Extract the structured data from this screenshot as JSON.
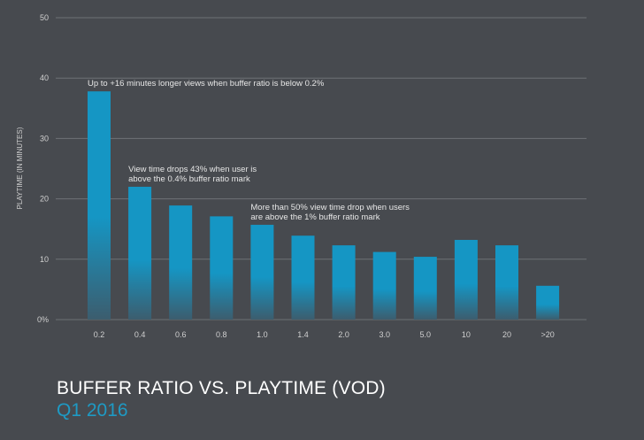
{
  "chart_data": {
    "type": "bar",
    "title": "BUFFER RATIO VS. PLAYTIME (VOD)",
    "subtitle": "Q1 2016",
    "ylabel": "PLAYTIME (IN MINUTES)",
    "xlabel": "",
    "ylim": [
      0,
      50
    ],
    "yticks": [
      {
        "value": 0,
        "label": "0%"
      },
      {
        "value": 10,
        "label": "10"
      },
      {
        "value": 20,
        "label": "20"
      },
      {
        "value": 30,
        "label": "30"
      },
      {
        "value": 40,
        "label": "40"
      },
      {
        "value": 50,
        "label": "50"
      }
    ],
    "grid": true,
    "categories": [
      "0.2",
      "0.4",
      "0.6",
      "0.8",
      "1.0",
      "1.4",
      "2.0",
      "3.0",
      "5.0",
      "10",
      "20",
      ">20"
    ],
    "values": [
      37.8,
      22.0,
      18.9,
      17.1,
      15.7,
      13.9,
      12.3,
      11.2,
      10.4,
      13.2,
      12.3,
      5.6
    ],
    "annotations": [
      {
        "category": "0.2",
        "lines": [
          "Up to +16 minutes longer views when buffer ratio is below 0.2%"
        ]
      },
      {
        "category": "0.4",
        "lines": [
          "View time drops 43% when user is",
          "above the 0.4% buffer ratio mark"
        ]
      },
      {
        "category": "1.0",
        "lines": [
          "More than 50% view time drop when users",
          "are above the 1% buffer ratio mark"
        ]
      }
    ],
    "colors": {
      "bar_top": "#1596c4",
      "bar_bottom": "#3c5d6e",
      "grid": "#6e7176",
      "text": "#e6e6e6",
      "axis_text": "#d0d0d0"
    }
  }
}
